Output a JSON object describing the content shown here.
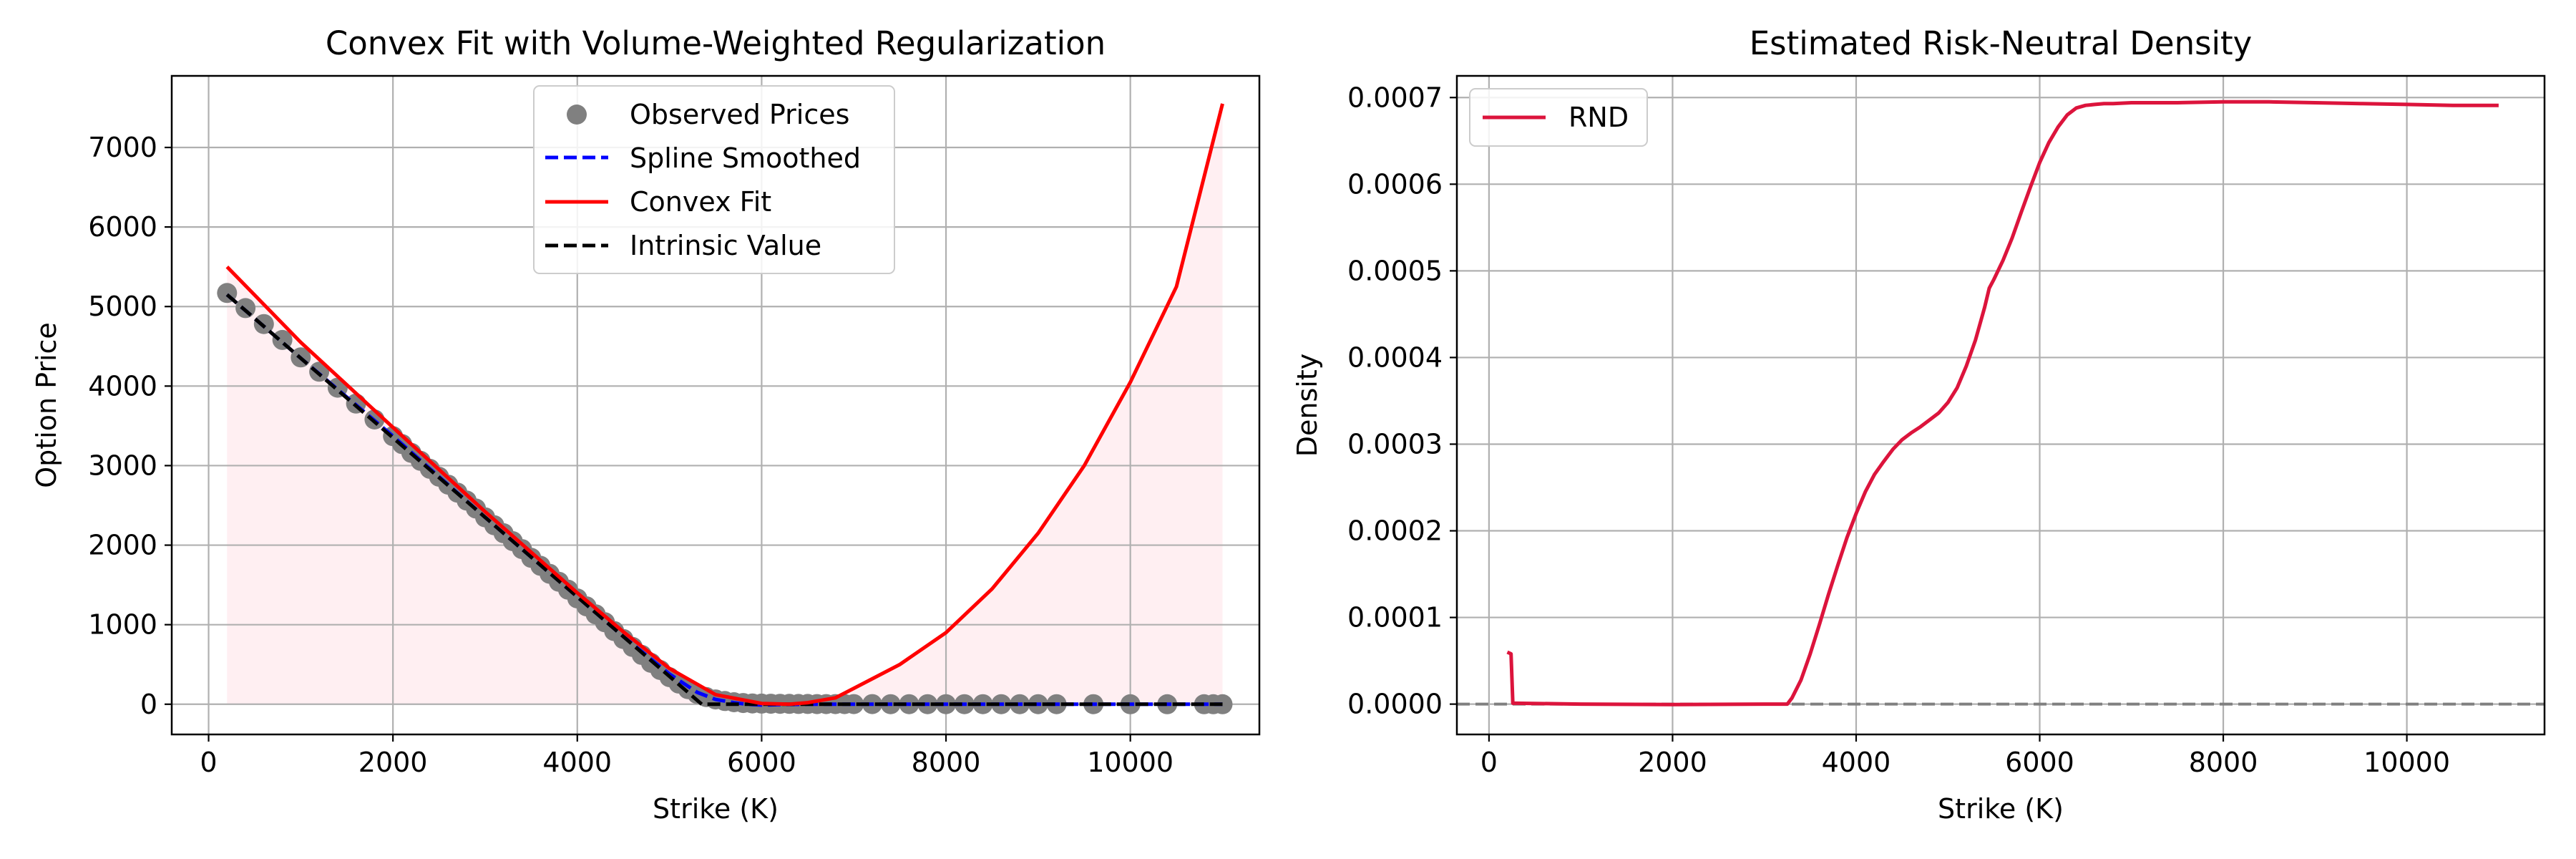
{
  "chart_data": [
    {
      "type": "line",
      "title": "Convex Fit with Volume-Weighted Regularization",
      "xlabel": "Strike (K)",
      "ylabel": "Option Price",
      "xlim": [
        -400,
        11400
      ],
      "ylim": [
        -380,
        7900
      ],
      "xticks": [
        0,
        2000,
        4000,
        6000,
        8000,
        10000
      ],
      "yticks": [
        0,
        1000,
        2000,
        3000,
        4000,
        5000,
        6000,
        7000
      ],
      "grid": true,
      "legend_position": "top-center",
      "legend": [
        "Observed Prices",
        "Spline Smoothed",
        "Convex Fit",
        "Intrinsic Value"
      ],
      "colors": {
        "observed": "#808080",
        "spline": "#0000ff",
        "convex": "#ff0000",
        "intrinsic": "#000000",
        "shade": "#ffc0cb"
      },
      "observed": {
        "name": "Observed Prices",
        "x": [
          200,
          400,
          600,
          800,
          1000,
          1200,
          1400,
          1600,
          1800,
          2000,
          2100,
          2200,
          2300,
          2400,
          2500,
          2600,
          2700,
          2800,
          2900,
          3000,
          3100,
          3200,
          3300,
          3400,
          3500,
          3600,
          3700,
          3800,
          3900,
          4000,
          4100,
          4200,
          4300,
          4400,
          4500,
          4600,
          4700,
          4800,
          4900,
          5000,
          5100,
          5200,
          5300,
          5400,
          5500,
          5600,
          5700,
          5800,
          5900,
          6000,
          6100,
          6200,
          6300,
          6400,
          6500,
          6600,
          6700,
          6800,
          6900,
          7000,
          7200,
          7400,
          7600,
          7800,
          8000,
          8200,
          8400,
          8600,
          8800,
          9000,
          9200,
          9600,
          10000,
          10400,
          10800,
          10900,
          11000
        ],
        "y": [
          5170,
          4980,
          4780,
          4580,
          4360,
          4180,
          3980,
          3780,
          3580,
          3370,
          3270,
          3160,
          3060,
          2960,
          2860,
          2760,
          2660,
          2560,
          2460,
          2350,
          2250,
          2150,
          2050,
          1950,
          1840,
          1740,
          1640,
          1540,
          1440,
          1330,
          1230,
          1130,
          1030,
          920,
          820,
          720,
          620,
          520,
          430,
          340,
          260,
          190,
          130,
          90,
          60,
          40,
          25,
          15,
          10,
          8,
          6,
          5,
          4,
          3,
          3,
          2,
          2,
          2,
          2,
          2,
          2,
          1,
          1,
          1,
          1,
          1,
          1,
          1,
          1,
          1,
          1,
          1,
          0,
          0,
          0,
          0,
          0
        ]
      },
      "spline": {
        "name": "Spline Smoothed",
        "x": [
          200,
          1000,
          2000,
          3000,
          4000,
          4500,
          5000,
          5300,
          5500,
          5700,
          5800,
          5900,
          6000,
          6200,
          6500,
          7000,
          8000,
          9000,
          10000,
          11000
        ],
        "y": [
          5150,
          4350,
          3370,
          2350,
          1350,
          850,
          380,
          150,
          60,
          20,
          5,
          -5,
          -10,
          -5,
          0,
          0,
          0,
          0,
          0,
          0
        ]
      },
      "convex": {
        "name": "Convex Fit",
        "x": [
          200,
          1000,
          2000,
          3000,
          4000,
          4500,
          5000,
          5500,
          6000,
          6300,
          6500,
          6800,
          7000,
          7500,
          8000,
          8500,
          9000,
          9500,
          10000,
          10500,
          11000
        ],
        "y": [
          5500,
          4550,
          3480,
          2420,
          1400,
          910,
          450,
          120,
          10,
          0,
          20,
          80,
          200,
          500,
          900,
          1450,
          2150,
          3000,
          4050,
          5250,
          7550
        ]
      },
      "intrinsic": {
        "name": "Intrinsic Value",
        "x": [
          200,
          1000,
          2000,
          3000,
          4000,
          5000,
          5350,
          5500,
          6000,
          11000
        ],
        "y": [
          5150,
          4350,
          3350,
          2350,
          1350,
          350,
          0,
          0,
          0,
          0
        ]
      }
    },
    {
      "type": "line",
      "title": "Estimated Risk-Neutral Density",
      "xlabel": "Strike (K)",
      "ylabel": "Density",
      "xlim": [
        -350,
        11500
      ],
      "ylim": [
        -3.5e-05,
        0.000725
      ],
      "xticks": [
        0,
        2000,
        4000,
        6000,
        8000,
        10000
      ],
      "yticks": [
        "0.0000",
        "0.0001",
        "0.0002",
        "0.0003",
        "0.0004",
        "0.0005",
        "0.0006",
        "0.0007"
      ],
      "grid": true,
      "legend_position": "top-left",
      "legend": [
        "RND"
      ],
      "colors": {
        "rnd": "#dc143c",
        "zero_line": "#808080"
      },
      "rnd": {
        "name": "RND",
        "x": [
          200,
          240,
          260,
          300,
          1000,
          2000,
          3000,
          3250,
          3300,
          3400,
          3500,
          3600,
          3700,
          3800,
          3900,
          4000,
          4100,
          4200,
          4300,
          4400,
          4500,
          4600,
          4700,
          4800,
          4900,
          5000,
          5100,
          5200,
          5300,
          5400,
          5450,
          5500,
          5600,
          5700,
          5800,
          5900,
          6000,
          6100,
          6200,
          6300,
          6400,
          6500,
          6600,
          6700,
          6800,
          7000,
          7500,
          8000,
          8500,
          9000,
          9500,
          10000,
          10500,
          11000
        ],
        "y": [
          6e-05,
          5.8e-05,
          1e-06,
          1e-06,
          0.0,
          -5e-07,
          0.0,
          0.0,
          7e-06,
          2.8e-05,
          5.8e-05,
          9.2e-05,
          0.000127,
          0.00016,
          0.000192,
          0.00022,
          0.000245,
          0.000265,
          0.00028,
          0.000294,
          0.000305,
          0.000313,
          0.00032,
          0.000328,
          0.000336,
          0.000348,
          0.000365,
          0.00039,
          0.00042,
          0.000458,
          0.00048,
          0.00049,
          0.000512,
          0.000538,
          0.000568,
          0.000597,
          0.000625,
          0.000648,
          0.000666,
          0.00068,
          0.000688,
          0.000691,
          0.000692,
          0.000693,
          0.000693,
          0.000694,
          0.000694,
          0.000695,
          0.000695,
          0.000694,
          0.000693,
          0.000692,
          0.000691,
          0.000691
        ]
      }
    }
  ]
}
